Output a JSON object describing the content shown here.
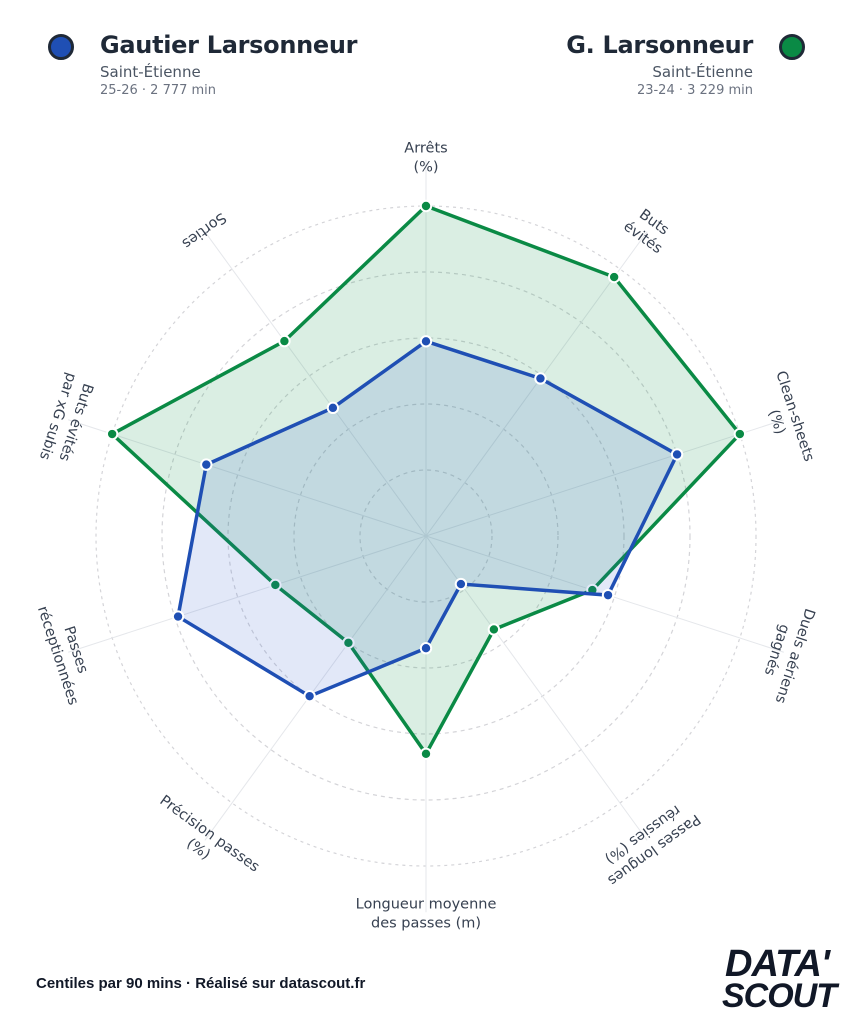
{
  "players": {
    "left": {
      "name": "Gautier Larsonneur",
      "club": "Saint-Étienne",
      "meta": "25-26 · 2 777 min",
      "color": "#1f4fb4"
    },
    "right": {
      "name": "G. Larsonneur",
      "club": "Saint-Étienne",
      "meta": "23-24 · 3 229 min",
      "color": "#0a8a45"
    }
  },
  "footer": {
    "text": "Centiles par 90 mins · Réalisé sur datascout.fr"
  },
  "logo": {
    "line1": "DATA'",
    "line2": "SCOUT"
  },
  "chart_data": {
    "type": "radar",
    "title": "",
    "range": [
      0,
      100
    ],
    "axes": [
      "Arrêts (%)",
      "Buts évités",
      "Clean-sheets (%)",
      "Duels aériens gagnés",
      "Passes longues réussies (%)",
      "Longueur moyenne des passes (m)",
      "Précision passes (%)",
      "Passes réceptionnées",
      "Buts évités par xG subis",
      "Sorties"
    ],
    "axis_lines": [
      [
        "Arrêts",
        "(%)"
      ],
      [
        "Buts",
        "évités"
      ],
      [
        "Clean-sheets",
        "(%)"
      ],
      [
        "Duels aériens",
        "gagnés"
      ],
      [
        "Passes longues",
        "réussies (%)"
      ],
      [
        "Longueur moyenne",
        "des passes (m)"
      ],
      [
        "Précision passes",
        "(%)"
      ],
      [
        "Passes",
        "réceptionnées"
      ],
      [
        "Buts évités",
        "par xG subis"
      ],
      [
        "Sorties"
      ]
    ],
    "series": [
      {
        "name": "G. Larsonneur (23-24)",
        "values": [
          100,
          97,
          100,
          53,
          35,
          66,
          40,
          48,
          100,
          73
        ]
      },
      {
        "name": "Gautier Larsonneur (25-26)",
        "values": [
          59,
          59,
          80,
          58,
          18,
          34,
          60,
          79,
          70,
          48
        ]
      }
    ]
  }
}
